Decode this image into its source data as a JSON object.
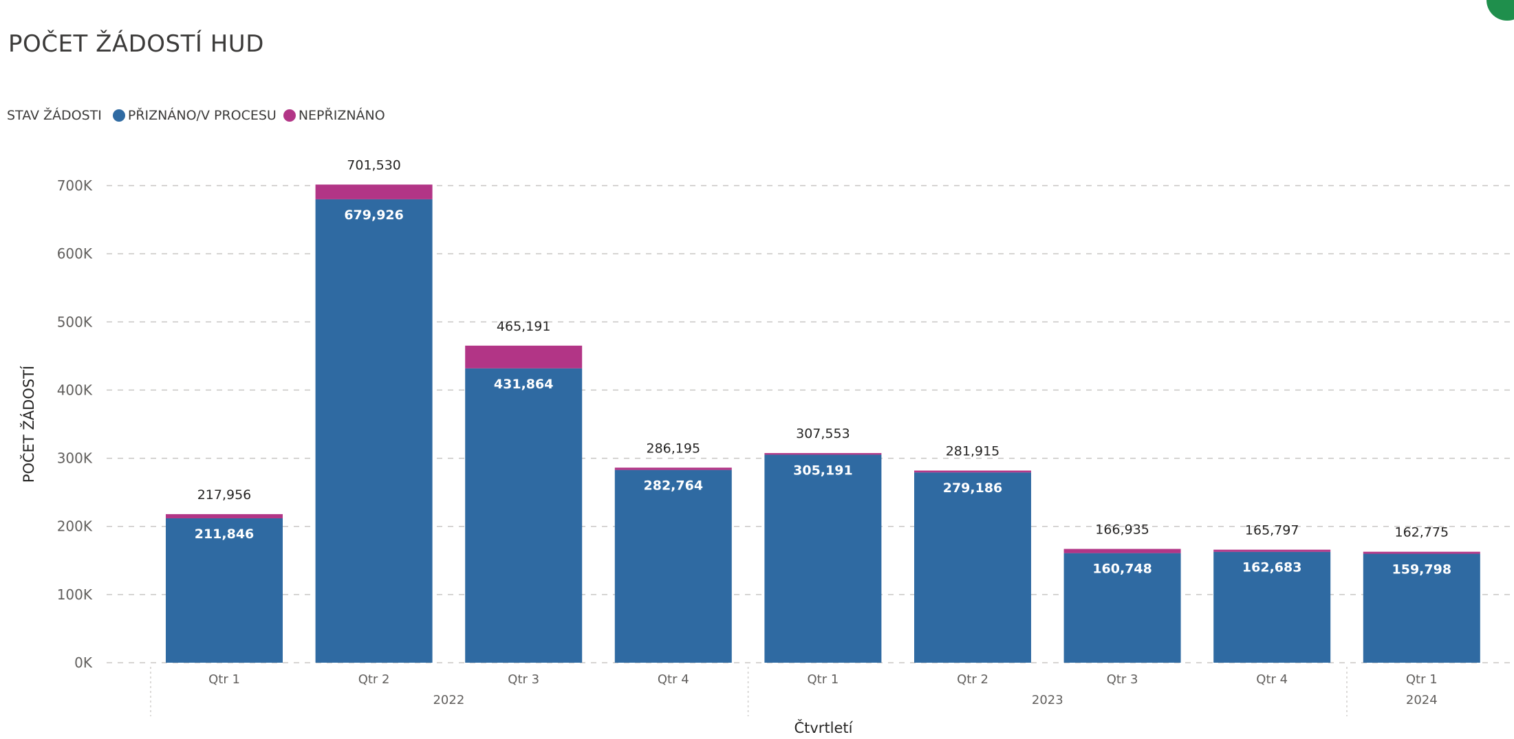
{
  "title": "POČET ŽÁDOSTÍ HUD",
  "legend": {
    "title": "STAV ŽÁDOSTI",
    "items": [
      {
        "label": "PŘIZNÁNO/V PROCESU",
        "color": "#2f6aa2"
      },
      {
        "label": "NEPŘIZNÁNO",
        "color": "#b23586"
      }
    ]
  },
  "chart_data": {
    "type": "bar",
    "stacked": true,
    "categories": [
      "Qtr 1",
      "Qtr 2",
      "Qtr 3",
      "Qtr 4",
      "Qtr 1",
      "Qtr 2",
      "Qtr 3",
      "Qtr 4",
      "Qtr 1"
    ],
    "years": [
      {
        "label": "2022",
        "span": [
          0,
          3
        ]
      },
      {
        "label": "2023",
        "span": [
          4,
          7
        ]
      },
      {
        "label": "2024",
        "span": [
          8,
          8
        ]
      }
    ],
    "series": [
      {
        "name": "PŘIZNÁNO/V PROCESU",
        "color": "#2f6aa2",
        "values": [
          211846,
          679926,
          431864,
          282764,
          305191,
          279186,
          160748,
          162683,
          159798
        ],
        "labels": [
          "211,846",
          "679,926",
          "431,864",
          "282,764",
          "305,191",
          "279,186",
          "160,748",
          "162,683",
          "159,798"
        ]
      },
      {
        "name": "NEPŘIZNÁNO",
        "color": "#b23586",
        "values": [
          6110,
          21604,
          33327,
          3431,
          2362,
          2729,
          6187,
          3114,
          2977
        ]
      }
    ],
    "totals": [
      217956,
      701530,
      465191,
      286195,
      307553,
      281915,
      166935,
      165797,
      162775
    ],
    "total_labels": [
      "217,956",
      "701,530",
      "465,191",
      "286,195",
      "307,553",
      "281,915",
      "166,935",
      "165,797",
      "162,775"
    ],
    "ylim": [
      0,
      700000
    ],
    "yticks": [
      0,
      100000,
      200000,
      300000,
      400000,
      500000,
      600000,
      700000
    ],
    "ytick_labels": [
      "0K",
      "100K",
      "200K",
      "300K",
      "400K",
      "500K",
      "600K",
      "700K"
    ],
    "xlabel": "Čtvrtletí",
    "ylabel": "POČET ŽÁDOSTÍ",
    "grid": true,
    "legend_position": "top-left"
  }
}
